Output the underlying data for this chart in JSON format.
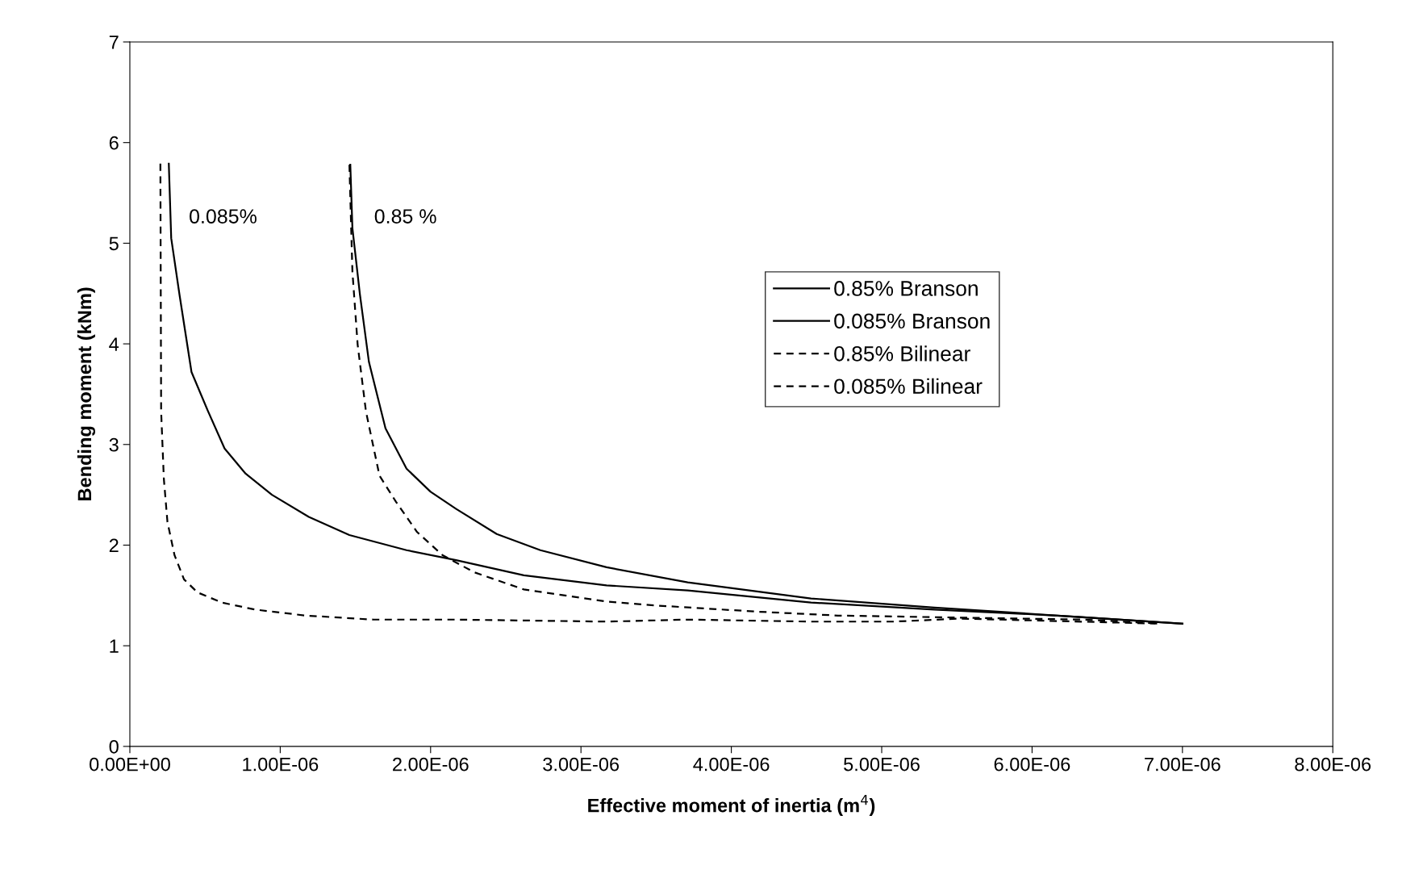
{
  "chart_data": {
    "type": "line",
    "xlabel": "Effective moment of inertia (m$^{4}$)",
    "ylabel": "Bending moment (kNm)",
    "xlim": [
      0,
      8e-06
    ],
    "ylim": [
      0,
      7
    ],
    "xticks": [
      {
        "value": 0,
        "label": "0.00E+00"
      },
      {
        "value": 1e-06,
        "label": "1.00E-06"
      },
      {
        "value": 2e-06,
        "label": "2.00E-06"
      },
      {
        "value": 3e-06,
        "label": "3.00E-06"
      },
      {
        "value": 4e-06,
        "label": "4.00E-06"
      },
      {
        "value": 5e-06,
        "label": "5.00E-06"
      },
      {
        "value": 6e-06,
        "label": "6.00E-06"
      },
      {
        "value": 7e-06,
        "label": "7.00E-06"
      },
      {
        "value": 8e-06,
        "label": "8.00E-06"
      }
    ],
    "yticks": [
      0,
      1,
      2,
      3,
      4,
      5,
      6,
      7
    ],
    "grid": false,
    "legend": "center",
    "marker": "none",
    "series": [
      {
        "name": "0.85% Branson",
        "color": "#000000",
        "line_style": "solid",
        "x": [
          1.466e-06,
          1.48e-06,
          1.53e-06,
          1.59e-06,
          1.7e-06,
          1.84e-06,
          2e-06,
          2.17e-06,
          2.44e-06,
          2.73e-06,
          3.17e-06,
          3.71e-06,
          4.53e-06,
          5.35e-06,
          6.17e-06,
          7e-06
        ],
        "values": [
          5.78,
          5.15,
          4.49,
          3.82,
          3.16,
          2.76,
          2.53,
          2.36,
          2.11,
          1.95,
          1.78,
          1.63,
          1.47,
          1.38,
          1.3,
          1.22
        ]
      },
      {
        "name": "0.085% Branson",
        "color": "#000000",
        "line_style": "solid",
        "x": [
          2.59e-07,
          2.75e-07,
          3.3e-07,
          4.1e-07,
          5.2e-07,
          6.3e-07,
          7.7e-07,
          9.45e-07,
          1.19e-06,
          1.46e-06,
          1.84e-06,
          2.17e-06,
          2.62e-06,
          3.17e-06,
          3.71e-06,
          4.53e-06,
          5.35e-06,
          6.17e-06,
          7e-06
        ],
        "values": [
          5.79,
          5.05,
          4.49,
          3.72,
          3.33,
          2.96,
          2.71,
          2.5,
          2.28,
          2.1,
          1.95,
          1.85,
          1.7,
          1.6,
          1.55,
          1.43,
          1.36,
          1.3,
          1.22
        ]
      },
      {
        "name": "0.85% Bilinear",
        "color": "#000000",
        "line_style": "dashed",
        "x": [
          1.46e-06,
          1.48e-06,
          1.515e-06,
          1.57e-06,
          1.66e-06,
          1.77e-06,
          1.91e-06,
          2.08e-06,
          2.29e-06,
          2.62e-06,
          3.17e-06,
          3.5e-06,
          4.16e-06,
          4.71e-06,
          5.52e-06,
          6.35e-06,
          6.85e-06
        ],
        "values": [
          5.78,
          4.72,
          3.99,
          3.33,
          2.69,
          2.43,
          2.13,
          1.9,
          1.73,
          1.56,
          1.44,
          1.4,
          1.34,
          1.3,
          1.28,
          1.26,
          1.22
        ]
      },
      {
        "name": "0.085% Bilinear",
        "color": "#000000",
        "line_style": "dashed",
        "x": [
          2.03e-07,
          2.08e-07,
          2.26e-07,
          2.5e-07,
          2.97e-07,
          3.6e-07,
          4.5e-07,
          6.1e-07,
          8.3e-07,
          1.17e-06,
          1.62e-06,
          2.17e-06,
          3.17e-06,
          3.71e-06,
          4.53e-06,
          5.08e-06,
          5.52e-06,
          6.85e-06
        ],
        "values": [
          5.79,
          3.33,
          2.66,
          2.23,
          1.9,
          1.66,
          1.53,
          1.43,
          1.36,
          1.3,
          1.26,
          1.26,
          1.24,
          1.26,
          1.24,
          1.24,
          1.27,
          1.22
        ]
      }
    ],
    "annotations": [
      "0.085%",
      "0.85 %"
    ]
  }
}
